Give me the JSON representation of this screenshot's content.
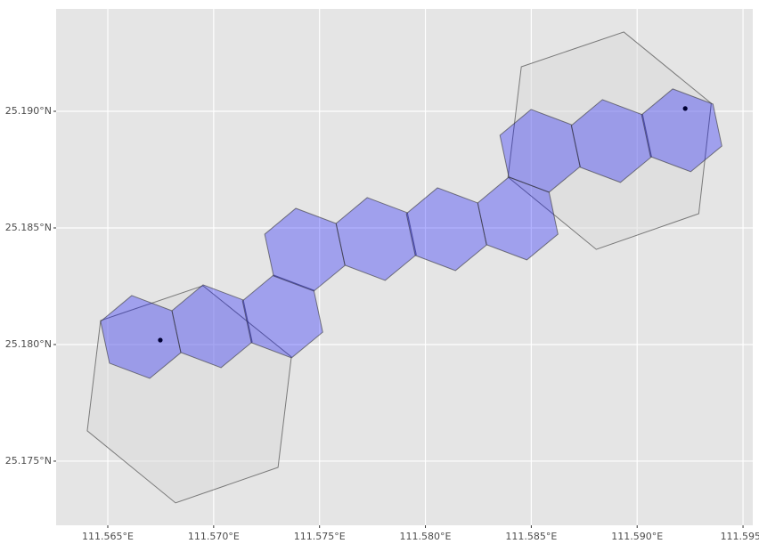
{
  "chart_data": {
    "type": "map",
    "xlim": [
      111.56256,
      111.59546
    ],
    "ylim": [
      25.17225,
      25.19439
    ],
    "xticks": [
      {
        "value": 111.565,
        "label": "111.565°E"
      },
      {
        "value": 111.57,
        "label": "111.570°E"
      },
      {
        "value": 111.575,
        "label": "111.575°E"
      },
      {
        "value": 111.58,
        "label": "111.580°E"
      },
      {
        "value": 111.585,
        "label": "111.585°E"
      },
      {
        "value": 111.59,
        "label": "111.590°E"
      },
      {
        "value": 111.595,
        "label": "111.595°"
      }
    ],
    "yticks": [
      {
        "value": 25.175,
        "label": "25.175°N"
      },
      {
        "value": 25.18,
        "label": "25.180°N"
      },
      {
        "value": 25.185,
        "label": "25.185°N"
      },
      {
        "value": 25.19,
        "label": "25.190°N"
      }
    ],
    "grid": true,
    "panel_color": "#e5e5e5",
    "grid_color": "#ffffff",
    "areas": {
      "color": "#d9d9d9",
      "polygons": [
        {
          "x": [
            111.5695,
            111.57367,
            111.57304,
            111.5682,
            111.56403,
            111.56466
          ],
          "y": [
            25.18252,
            25.17947,
            25.17473,
            25.17321,
            25.1763,
            25.18103
          ]
        },
        {
          "x": [
            111.58453,
            111.58937,
            111.5935,
            111.59291,
            111.58807,
            111.5839
          ],
          "y": [
            25.19191,
            25.1934,
            25.19034,
            25.18561,
            25.18408,
            25.18718
          ]
        }
      ]
    },
    "hexes": {
      "color": "#0000ff",
      "polygons": [
        {
          "x": [
            111.56466,
            111.56613,
            111.56803,
            111.56845,
            111.56698,
            111.56508
          ],
          "y": [
            25.18099,
            25.1821,
            25.18145,
            25.17965,
            25.17855,
            25.1792
          ]
        },
        {
          "x": [
            111.56803,
            111.5695,
            111.5714,
            111.57182,
            111.57035,
            111.56845
          ],
          "y": [
            25.18145,
            25.18256,
            25.18191,
            25.18011,
            25.17901,
            25.17966
          ]
        },
        {
          "x": [
            111.57136,
            111.57283,
            111.57473,
            111.57515,
            111.57368,
            111.57178
          ],
          "y": [
            25.18187,
            25.18298,
            25.18233,
            25.18053,
            25.17943,
            25.18008
          ]
        },
        {
          "x": [
            111.57241,
            111.57388,
            111.57578,
            111.5762,
            111.57473,
            111.57283
          ],
          "y": [
            25.18473,
            25.18584,
            25.18519,
            25.18339,
            25.18229,
            25.18294
          ]
        },
        {
          "x": [
            111.57578,
            111.57725,
            111.57915,
            111.57957,
            111.5781,
            111.5762
          ],
          "y": [
            25.18519,
            25.1863,
            25.18565,
            25.18385,
            25.18275,
            25.1834
          ]
        },
        {
          "x": [
            111.5791,
            111.58057,
            111.58247,
            111.58289,
            111.58142,
            111.57952
          ],
          "y": [
            25.18561,
            25.18672,
            25.18607,
            25.18427,
            25.18317,
            25.18382
          ]
        },
        {
          "x": [
            111.58247,
            111.58394,
            111.58584,
            111.58626,
            111.58479,
            111.58289
          ],
          "y": [
            25.18607,
            25.18718,
            25.18653,
            25.18473,
            25.18363,
            25.18428
          ]
        },
        {
          "x": [
            111.58352,
            111.58499,
            111.58689,
            111.58731,
            111.58584,
            111.58394
          ],
          "y": [
            25.18897,
            25.19008,
            25.18943,
            25.18763,
            25.18653,
            25.18718
          ]
        },
        {
          "x": [
            111.58689,
            111.58836,
            111.59026,
            111.59068,
            111.58921,
            111.58731
          ],
          "y": [
            25.18939,
            25.1905,
            25.18985,
            25.18805,
            25.18695,
            25.1876
          ]
        },
        {
          "x": [
            111.59021,
            111.59168,
            111.59358,
            111.594,
            111.59253,
            111.59063
          ],
          "y": [
            25.18985,
            25.19096,
            25.19031,
            25.18851,
            25.18741,
            25.18806
          ]
        }
      ]
    },
    "points": {
      "color": "#000033",
      "x": [
        111.56748,
        111.59227
      ],
      "y": [
        25.18019,
        25.19012
      ]
    }
  }
}
